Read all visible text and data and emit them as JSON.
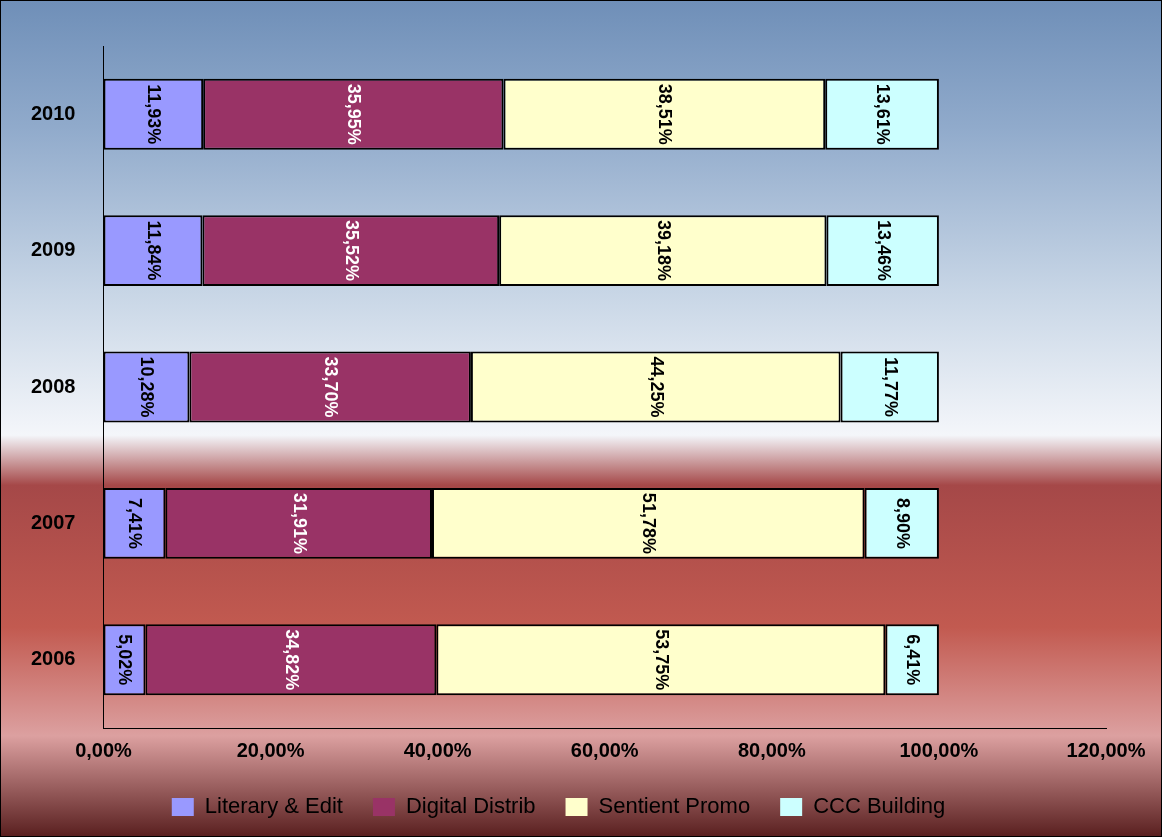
{
  "chart_data": {
    "type": "bar",
    "orientation": "horizontal",
    "stacked": true,
    "categories": [
      "2010",
      "2009",
      "2008",
      "2007",
      "2006"
    ],
    "series": [
      {
        "name": "Literary & Edit",
        "color": "#9999ff",
        "values": [
          11.93,
          11.84,
          10.28,
          7.41,
          5.02
        ],
        "value_labels": [
          "11,93%",
          "11,84%",
          "10,28%",
          "7,41%",
          "5,02%"
        ]
      },
      {
        "name": "Digital Distrib",
        "color": "#993366",
        "values": [
          35.95,
          35.52,
          33.7,
          31.91,
          34.82
        ],
        "value_labels": [
          "35,95%",
          "35,52%",
          "33,70%",
          "31,91%",
          "34,82%"
        ]
      },
      {
        "name": "Sentient Promo",
        "color": "#ffffcc",
        "values": [
          38.51,
          39.18,
          44.25,
          51.78,
          53.75
        ],
        "value_labels": [
          "38,51%",
          "39,18%",
          "44,25%",
          "51,78%",
          "53,75%"
        ]
      },
      {
        "name": "CCC Building",
        "color": "#ccffff",
        "values": [
          13.61,
          13.46,
          11.77,
          8.9,
          6.41
        ],
        "value_labels": [
          "13,61%",
          "13,46%",
          "11,77%",
          "8,90%",
          "6,41%"
        ]
      }
    ],
    "xlim": [
      0,
      120
    ],
    "xticks": [
      {
        "value": 0,
        "label": "0,00%"
      },
      {
        "value": 20,
        "label": "20,00%"
      },
      {
        "value": 40,
        "label": "40,00%"
      },
      {
        "value": 60,
        "label": "60,00%"
      },
      {
        "value": 80,
        "label": "80,00%"
      },
      {
        "value": 100,
        "label": "100,00%"
      },
      {
        "value": 120,
        "label": "120,00%"
      }
    ],
    "grid": false,
    "legend": "bottom"
  }
}
